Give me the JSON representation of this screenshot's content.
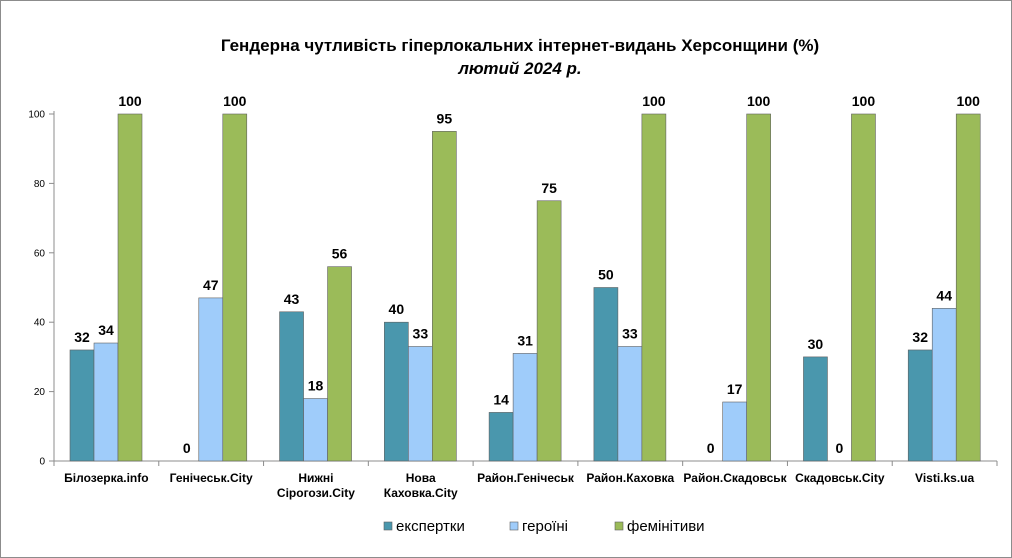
{
  "chart_data": {
    "type": "bar",
    "title": "Гендерна чутливість гіперлокальних інтернет-видань Херсонщини (%)",
    "subtitle": "лютий 2024 р.",
    "categories": [
      [
        "Білозерка.info"
      ],
      [
        "Генічеськ.City"
      ],
      [
        "Нижні",
        "Сірогози.City"
      ],
      [
        "Нова",
        "Каховка.City"
      ],
      [
        "Район.Генічеськ"
      ],
      [
        "Район.Каховка"
      ],
      [
        "Район.Скадовськ"
      ],
      [
        "Скадовськ.City"
      ],
      [
        "Visti.ks.ua"
      ]
    ],
    "series": [
      {
        "name": "експертки",
        "color": "#4a97ad",
        "values": [
          32,
          0,
          43,
          40,
          14,
          50,
          0,
          30,
          32
        ]
      },
      {
        "name": "героїні",
        "color": "#9fccfa",
        "values": [
          34,
          47,
          18,
          33,
          31,
          33,
          17,
          0,
          44
        ]
      },
      {
        "name": "фемінітиви",
        "color": "#9bbb59",
        "values": [
          100,
          100,
          56,
          95,
          75,
          100,
          100,
          100,
          100
        ]
      }
    ],
    "yticks": [
      0,
      20,
      40,
      60,
      80,
      100
    ],
    "ylim": [
      0,
      100
    ],
    "grid": false,
    "legend": "bottom"
  }
}
